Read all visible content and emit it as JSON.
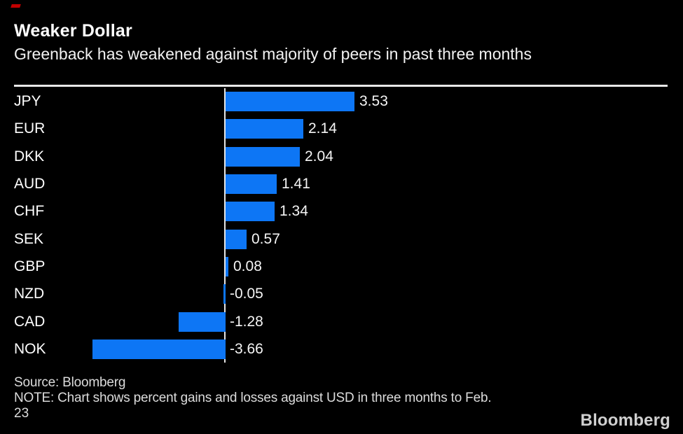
{
  "header": {
    "title": "Weaker Dollar",
    "subtitle": "Greenback has weakened against majority of peers in past three months"
  },
  "footer": {
    "source": "Source: Bloomberg",
    "note_line1": "NOTE: Chart shows percent gains and losses against USD in three months to Feb.",
    "note_line2": "23",
    "brand": "Bloomberg"
  },
  "colors": {
    "background": "#000000",
    "bar": "#0d76f5",
    "text": "#ffffff",
    "rule": "#e8e8e8",
    "footer_text": "#dcdcdc"
  },
  "chart_data": {
    "type": "bar",
    "orientation": "horizontal",
    "title": "Weaker Dollar",
    "subtitle": "Greenback has weakened against majority of peers in past three months",
    "categories": [
      "JPY",
      "EUR",
      "DKK",
      "AUD",
      "CHF",
      "SEK",
      "GBP",
      "NZD",
      "CAD",
      "NOK"
    ],
    "values": [
      3.53,
      2.14,
      2.04,
      1.41,
      1.34,
      0.57,
      0.08,
      -0.05,
      -1.28,
      -3.66
    ],
    "value_labels": [
      "3.53",
      "2.14",
      "2.04",
      "1.41",
      "1.34",
      "0.57",
      "0.08",
      "-0.05",
      "-1.28",
      "-3.66"
    ],
    "xlabel": "",
    "ylabel": "",
    "xlim": [
      -4,
      4.2
    ],
    "grid": false,
    "zero_line": true,
    "legend": "none",
    "bar_color": "#0d76f5"
  }
}
